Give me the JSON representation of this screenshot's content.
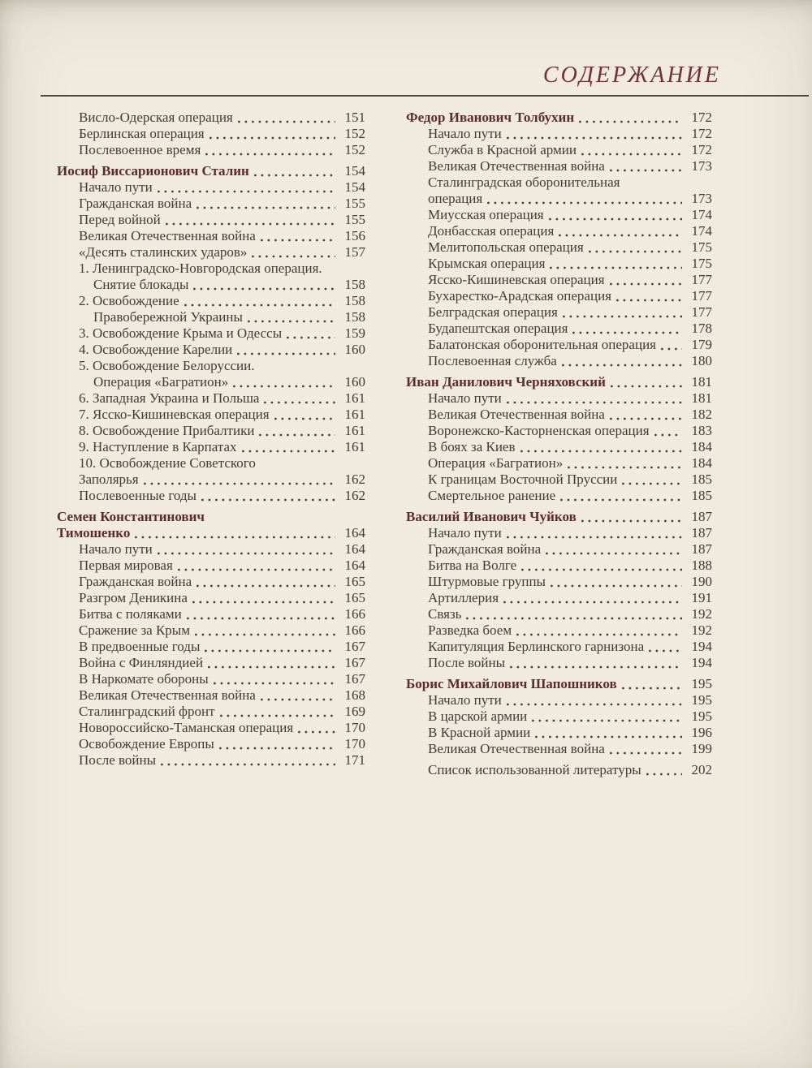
{
  "title": "СОДЕРЖАНИЕ",
  "colors": {
    "background": "#f0ebde",
    "text": "#3f3c36",
    "title": "#71303c",
    "section": "#5d2a2d",
    "rule": "#4e483f"
  },
  "columns": {
    "left": [
      {
        "t": "Висло-Одерская операция",
        "p": "151",
        "b": false,
        "i": 1,
        "gap": false
      },
      {
        "t": "Берлинская операция",
        "p": "152",
        "b": false,
        "i": 1,
        "gap": false
      },
      {
        "t": "Послевоенное время",
        "p": "152",
        "b": false,
        "i": 1,
        "gap": false
      },
      {
        "t": "Иосиф Виссарионович Сталин",
        "p": "154",
        "b": true,
        "i": 0,
        "gap": true
      },
      {
        "t": "Начало пути",
        "p": "154",
        "b": false,
        "i": 1,
        "gap": false
      },
      {
        "t": "Гражданская война",
        "p": "155",
        "b": false,
        "i": 1,
        "gap": false
      },
      {
        "t": "Перед войной",
        "p": "155",
        "b": false,
        "i": 1,
        "gap": false
      },
      {
        "t": "Великая Отечественная война",
        "p": "156",
        "b": false,
        "i": 1,
        "gap": false
      },
      {
        "t": "«Десять сталинских ударов»",
        "p": "157",
        "b": false,
        "i": 1,
        "gap": false
      },
      {
        "t": "1. Ленинградско-Новгородская операция.",
        "p": "",
        "b": false,
        "i": 1,
        "gap": false
      },
      {
        "t": "Снятие блокады",
        "p": "158",
        "b": false,
        "i": 2,
        "gap": false
      },
      {
        "t": "2. Освобождение",
        "p": "158",
        "b": false,
        "i": 1,
        "gap": false
      },
      {
        "t": "Правобережной Украины",
        "p": "158",
        "b": false,
        "i": 2,
        "gap": false
      },
      {
        "t": "3. Освобождение Крыма и Одессы",
        "p": "159",
        "b": false,
        "i": 1,
        "gap": false
      },
      {
        "t": "4. Освобождение Карелии",
        "p": "160",
        "b": false,
        "i": 1,
        "gap": false
      },
      {
        "t": "5. Освобождение Белоруссии.",
        "p": "",
        "b": false,
        "i": 1,
        "gap": false
      },
      {
        "t": "Операция «Багратион»",
        "p": "160",
        "b": false,
        "i": 2,
        "gap": false
      },
      {
        "t": "6. Западная Украина и Польша",
        "p": "161",
        "b": false,
        "i": 1,
        "gap": false
      },
      {
        "t": "7. Ясско-Кишиневская операция",
        "p": "161",
        "b": false,
        "i": 1,
        "gap": false
      },
      {
        "t": "8. Освобождение Прибалтики",
        "p": "161",
        "b": false,
        "i": 1,
        "gap": false
      },
      {
        "t": "9. Наступление в Карпатах",
        "p": "161",
        "b": false,
        "i": 1,
        "gap": false
      },
      {
        "t": "10. Освобождение Советского",
        "p": "",
        "b": false,
        "i": 1,
        "gap": false
      },
      {
        "t": "Заполярья",
        "p": "162",
        "b": false,
        "i": 1,
        "gap": false
      },
      {
        "t": "Послевоенные годы",
        "p": "162",
        "b": false,
        "i": 1,
        "gap": false
      },
      {
        "t": "Семен Константинович",
        "p": "",
        "b": true,
        "i": 0,
        "gap": true
      },
      {
        "t": "Тимошенко",
        "p": "164",
        "b": true,
        "i": 0,
        "gap": false
      },
      {
        "t": "Начало пути",
        "p": "164",
        "b": false,
        "i": 1,
        "gap": false
      },
      {
        "t": "Первая мировая",
        "p": "164",
        "b": false,
        "i": 1,
        "gap": false
      },
      {
        "t": "Гражданская война",
        "p": "165",
        "b": false,
        "i": 1,
        "gap": false
      },
      {
        "t": "Разгром Деникина",
        "p": "165",
        "b": false,
        "i": 1,
        "gap": false
      },
      {
        "t": "Битва с поляками",
        "p": "166",
        "b": false,
        "i": 1,
        "gap": false
      },
      {
        "t": "Сражение за Крым",
        "p": "166",
        "b": false,
        "i": 1,
        "gap": false
      },
      {
        "t": "В предвоенные годы",
        "p": "167",
        "b": false,
        "i": 1,
        "gap": false
      },
      {
        "t": "Война с Финляндией",
        "p": "167",
        "b": false,
        "i": 1,
        "gap": false
      },
      {
        "t": "В Наркомате обороны",
        "p": "167",
        "b": false,
        "i": 1,
        "gap": false
      },
      {
        "t": "Великая Отечественная война",
        "p": "168",
        "b": false,
        "i": 1,
        "gap": false
      },
      {
        "t": "Сталинградский фронт",
        "p": "169",
        "b": false,
        "i": 1,
        "gap": false
      },
      {
        "t": "Новороссийско-Таманская операция",
        "p": "170",
        "b": false,
        "i": 1,
        "gap": false
      },
      {
        "t": "Освобождение Европы",
        "p": "170",
        "b": false,
        "i": 1,
        "gap": false
      },
      {
        "t": "После войны",
        "p": "171",
        "b": false,
        "i": 1,
        "gap": false
      }
    ],
    "right": [
      {
        "t": "Федор Иванович Толбухин",
        "p": "172",
        "b": true,
        "i": 0,
        "gap": false
      },
      {
        "t": "Начало пути",
        "p": "172",
        "b": false,
        "i": 1,
        "gap": false
      },
      {
        "t": "Служба в Красной армии",
        "p": "172",
        "b": false,
        "i": 1,
        "gap": false
      },
      {
        "t": "Великая Отечественная война",
        "p": "173",
        "b": false,
        "i": 1,
        "gap": false
      },
      {
        "t": "Сталинградская оборонительная",
        "p": "",
        "b": false,
        "i": 1,
        "gap": false
      },
      {
        "t": "операция",
        "p": "173",
        "b": false,
        "i": 1,
        "gap": false
      },
      {
        "t": "Миусская операция",
        "p": "174",
        "b": false,
        "i": 1,
        "gap": false
      },
      {
        "t": "Донбасская операция",
        "p": "174",
        "b": false,
        "i": 1,
        "gap": false
      },
      {
        "t": "Мелитопольская операция",
        "p": "175",
        "b": false,
        "i": 1,
        "gap": false
      },
      {
        "t": "Крымская операция",
        "p": "175",
        "b": false,
        "i": 1,
        "gap": false
      },
      {
        "t": "Ясско-Кишиневская операция",
        "p": "177",
        "b": false,
        "i": 1,
        "gap": false
      },
      {
        "t": "Бухарестко-Арадская операция",
        "p": "177",
        "b": false,
        "i": 1,
        "gap": false
      },
      {
        "t": "Белградская операция",
        "p": "177",
        "b": false,
        "i": 1,
        "gap": false
      },
      {
        "t": "Будапештская операция",
        "p": "178",
        "b": false,
        "i": 1,
        "gap": false
      },
      {
        "t": "Балатонская оборонительная операция",
        "p": "179",
        "b": false,
        "i": 1,
        "gap": false
      },
      {
        "t": "Послевоенная служба",
        "p": "180",
        "b": false,
        "i": 1,
        "gap": false
      },
      {
        "t": "Иван Данилович Черняховский",
        "p": "181",
        "b": true,
        "i": 0,
        "gap": true
      },
      {
        "t": "Начало пути",
        "p": "181",
        "b": false,
        "i": 1,
        "gap": false
      },
      {
        "t": "Великая Отечественная война",
        "p": "182",
        "b": false,
        "i": 1,
        "gap": false
      },
      {
        "t": "Воронежско-Касторненская операция",
        "p": "183",
        "b": false,
        "i": 1,
        "gap": false
      },
      {
        "t": "В боях за Киев",
        "p": "184",
        "b": false,
        "i": 1,
        "gap": false
      },
      {
        "t": "Операция «Багратион»",
        "p": "184",
        "b": false,
        "i": 1,
        "gap": false
      },
      {
        "t": "К границам Восточной Пруссии",
        "p": "185",
        "b": false,
        "i": 1,
        "gap": false
      },
      {
        "t": "Смертельное ранение",
        "p": "185",
        "b": false,
        "i": 1,
        "gap": false
      },
      {
        "t": "Василий Иванович Чуйков",
        "p": "187",
        "b": true,
        "i": 0,
        "gap": true
      },
      {
        "t": "Начало пути",
        "p": "187",
        "b": false,
        "i": 1,
        "gap": false
      },
      {
        "t": "Гражданская война",
        "p": "187",
        "b": false,
        "i": 1,
        "gap": false
      },
      {
        "t": "Битва на Волге",
        "p": "188",
        "b": false,
        "i": 1,
        "gap": false
      },
      {
        "t": "Штурмовые группы",
        "p": "190",
        "b": false,
        "i": 1,
        "gap": false
      },
      {
        "t": "Артиллерия",
        "p": "191",
        "b": false,
        "i": 1,
        "gap": false
      },
      {
        "t": "Связь",
        "p": "192",
        "b": false,
        "i": 1,
        "gap": false
      },
      {
        "t": "Разведка боем",
        "p": "192",
        "b": false,
        "i": 1,
        "gap": false
      },
      {
        "t": "Капитуляция Берлинского гарнизона",
        "p": "194",
        "b": false,
        "i": 1,
        "gap": false
      },
      {
        "t": "После войны",
        "p": "194",
        "b": false,
        "i": 1,
        "gap": false
      },
      {
        "t": "Борис Михайлович Шапошников",
        "p": "195",
        "b": true,
        "i": 0,
        "gap": true
      },
      {
        "t": "Начало пути",
        "p": "195",
        "b": false,
        "i": 1,
        "gap": false
      },
      {
        "t": "В царской армии",
        "p": "195",
        "b": false,
        "i": 1,
        "gap": false
      },
      {
        "t": "В Красной армии",
        "p": "196",
        "b": false,
        "i": 1,
        "gap": false
      },
      {
        "t": "Великая Отечественная война",
        "p": "199",
        "b": false,
        "i": 1,
        "gap": false
      },
      {
        "t": "Список использованной литературы",
        "p": "202",
        "b": false,
        "i": 1,
        "gap": true
      }
    ]
  }
}
